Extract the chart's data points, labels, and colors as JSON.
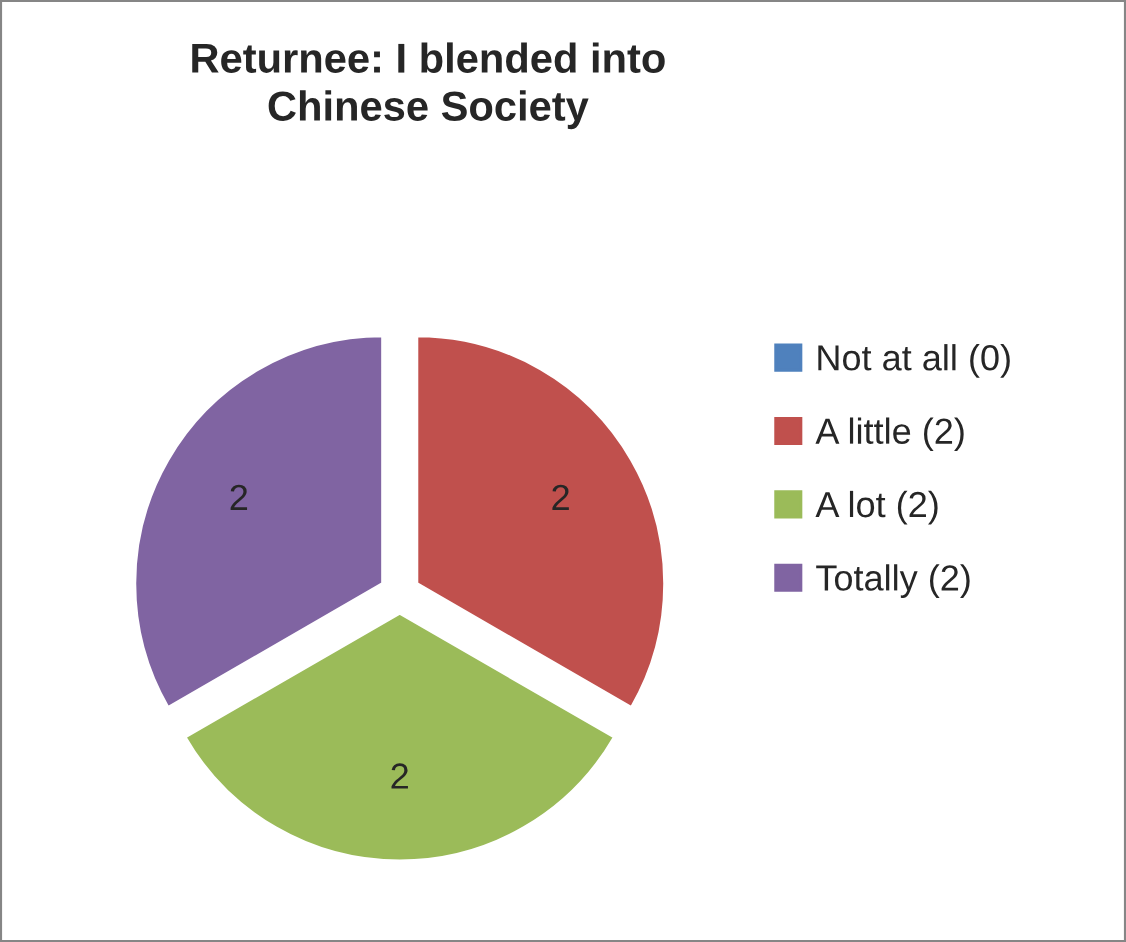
{
  "chart_data": {
    "type": "pie",
    "title": "Returnee: I blended into\nChinese Society",
    "categories": [
      "Not at all (0)",
      "A little (2)",
      "A lot (2)",
      "Totally (2)"
    ],
    "values": [
      0,
      2,
      2,
      2
    ],
    "colors": [
      "#4f81bd",
      "#c0504d",
      "#9bbb59",
      "#8064a2"
    ],
    "value_labels": [
      null,
      "2",
      "2",
      "2"
    ],
    "legend": "right"
  }
}
